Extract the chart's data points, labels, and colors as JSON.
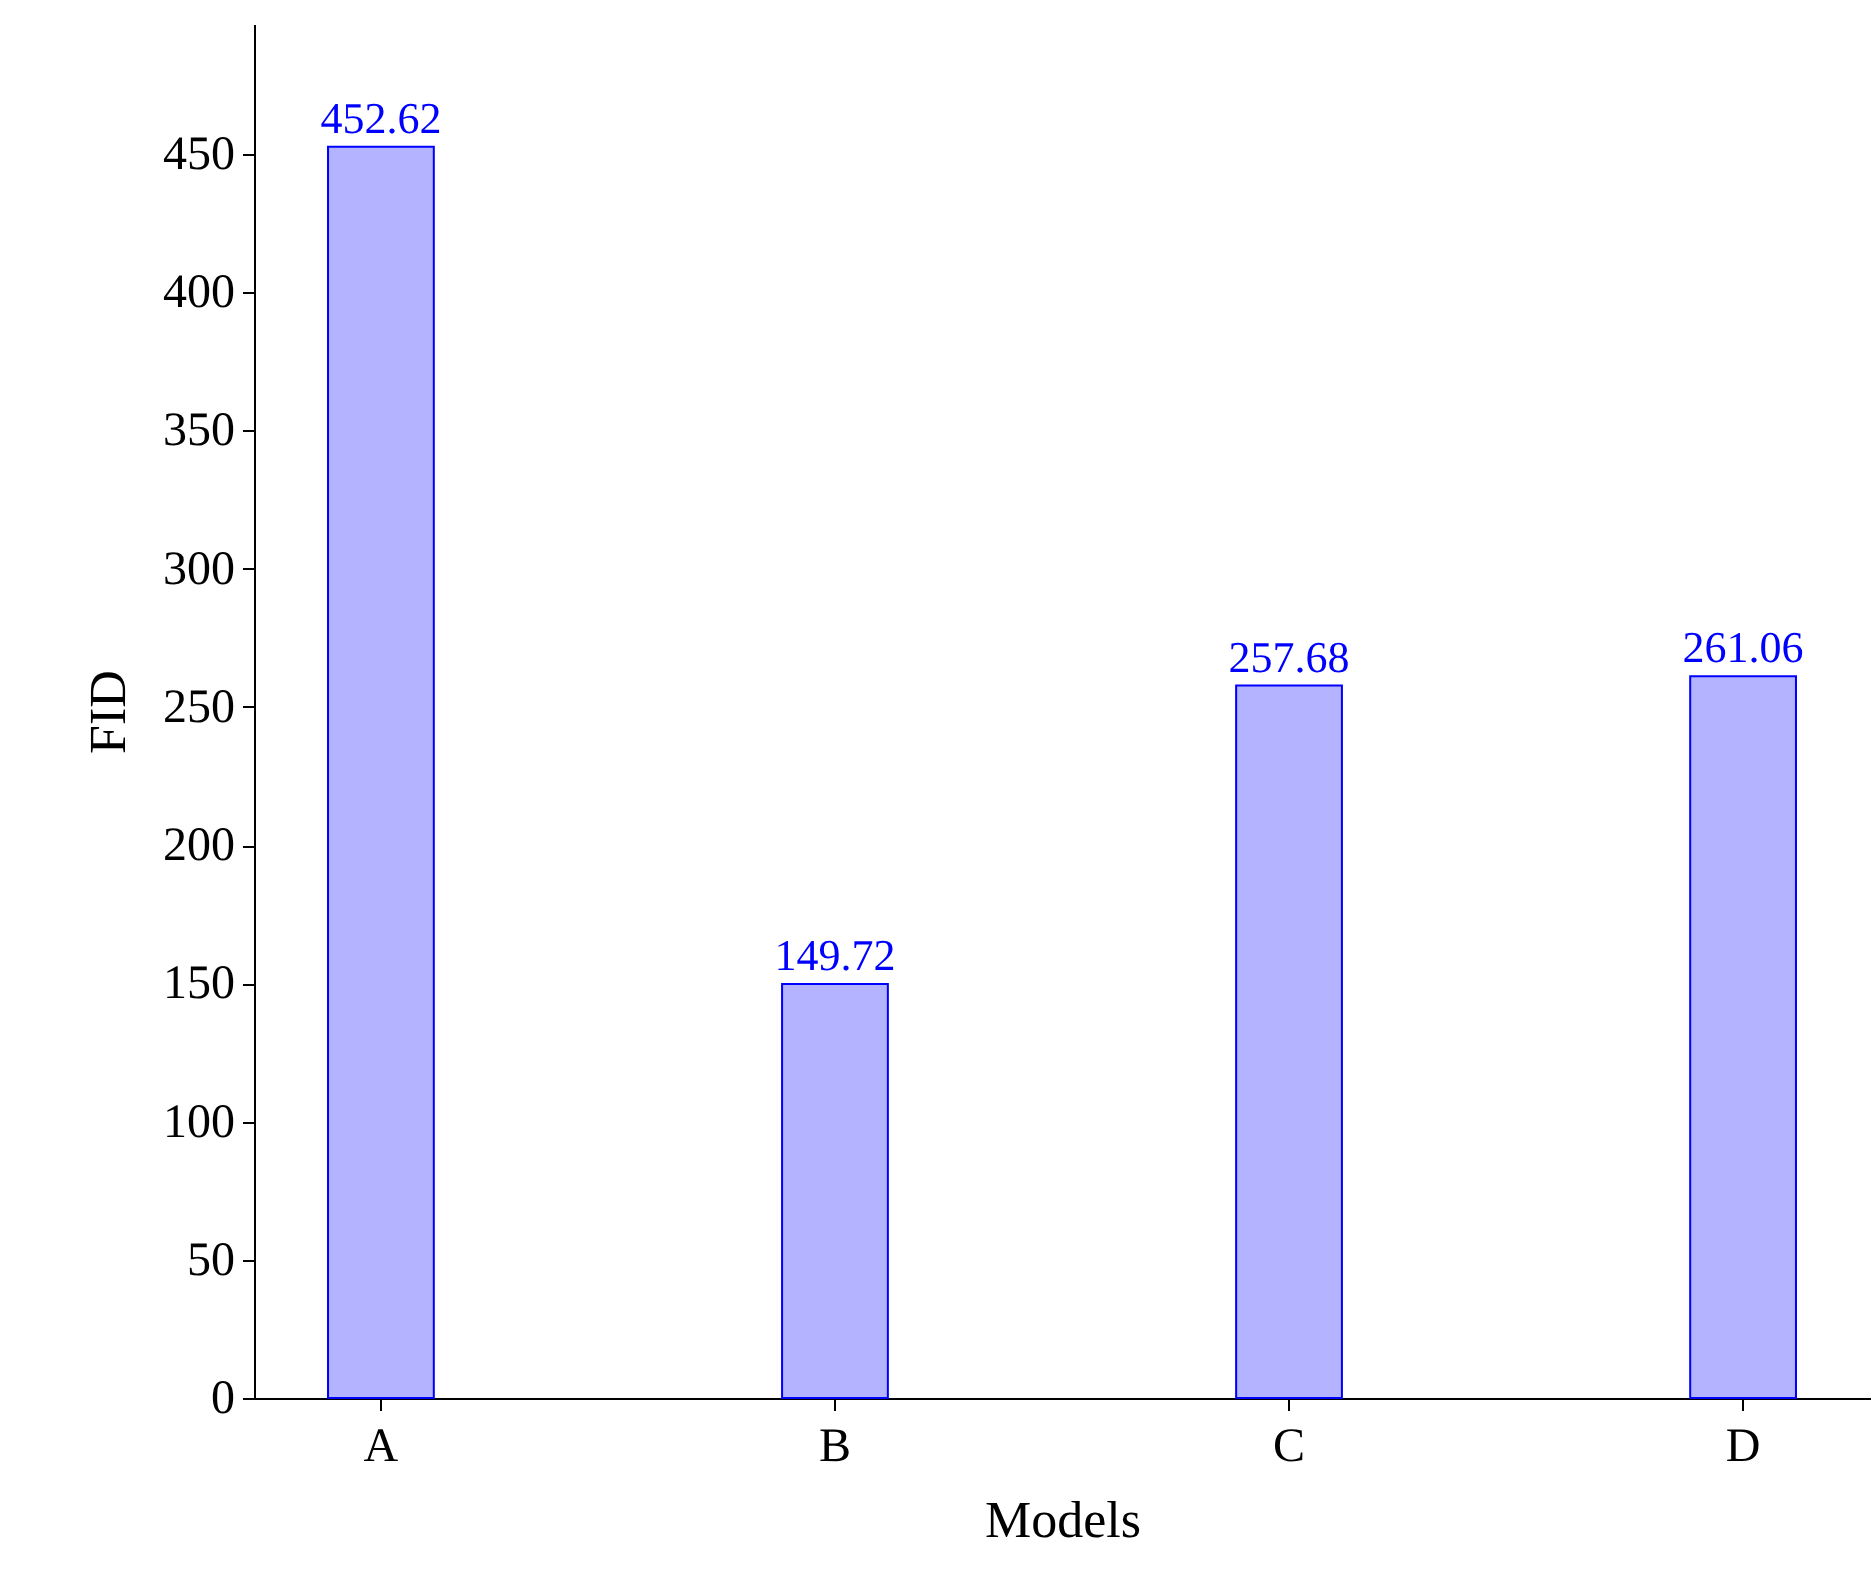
{
  "chart_data": {
    "type": "bar",
    "xlabel": "Models",
    "ylabel": "FID",
    "categories": [
      "A",
      "B",
      "C",
      "D"
    ],
    "series": [
      {
        "color": "#b3b3ff",
        "values": [
          452.62,
          149.72,
          257.68,
          261.06
        ]
      }
    ],
    "ylim": [
      0,
      497
    ],
    "yticks": [
      0,
      50,
      100,
      150,
      200,
      250,
      300,
      350,
      400,
      450
    ],
    "data_labels": true,
    "grid": false
  }
}
